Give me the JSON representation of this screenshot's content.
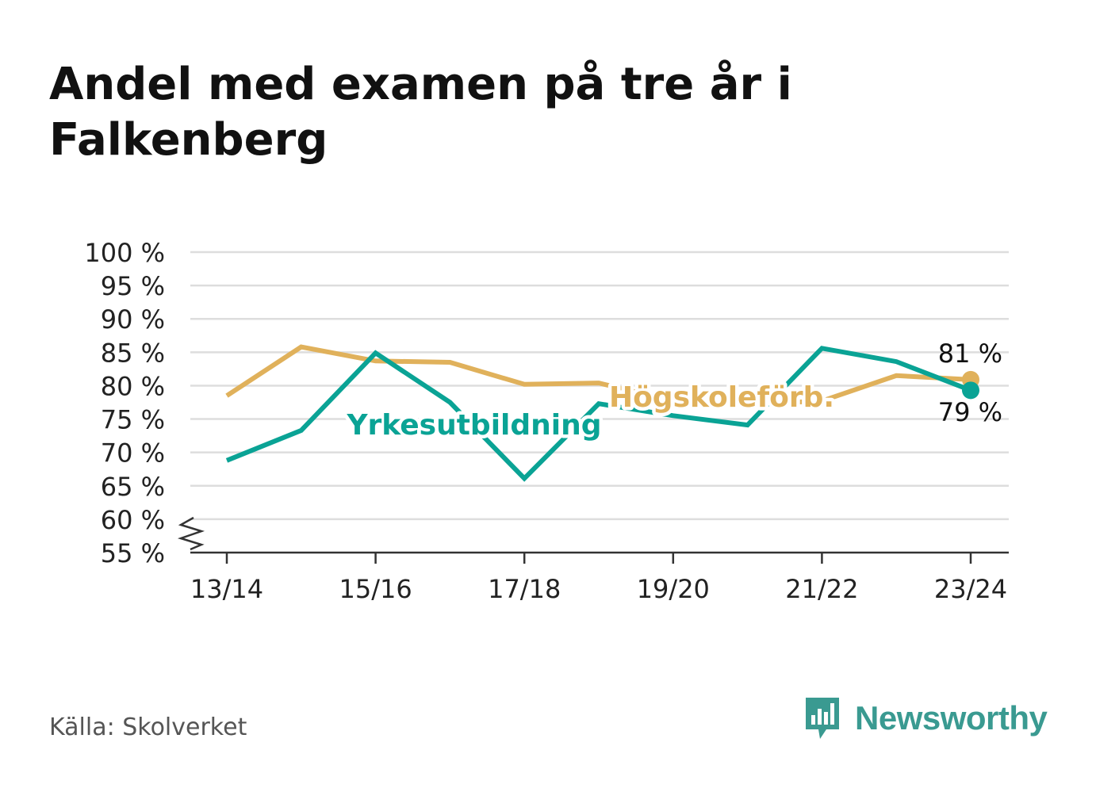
{
  "title": "Andel med examen på tre år i Falkenberg",
  "source": "Källa: Skolverket",
  "brand": {
    "name": "Newsworthy",
    "icon": "newsworthy-logo-icon"
  },
  "colors": {
    "yrke": "#0aa395",
    "hogskole": "#e0b15b",
    "grid": "#dddddd",
    "axis": "#333333",
    "text": "#222222"
  },
  "chart_data": {
    "type": "line",
    "title": "Andel med examen på tre år i Falkenberg",
    "xlabel": "",
    "ylabel": "",
    "ylim": [
      55,
      100
    ],
    "yticks": [
      100,
      95,
      90,
      85,
      80,
      75,
      70,
      65,
      60,
      55
    ],
    "ytick_labels": [
      "100 %",
      "95 %",
      "90 %",
      "85 %",
      "80 %",
      "75 %",
      "70 %",
      "65 %",
      "60 %",
      "55 %"
    ],
    "y_axis_break": true,
    "grid": true,
    "categories": [
      "13/14",
      "14/15",
      "15/16",
      "16/17",
      "17/18",
      "18/19",
      "19/20",
      "20/21",
      "21/22",
      "22/23",
      "23/24"
    ],
    "xtick_labels": [
      "13/14",
      "",
      "15/16",
      "",
      "17/18",
      "",
      "19/20",
      "",
      "21/22",
      "",
      "23/24"
    ],
    "series": [
      {
        "name": "Högskoleförb.",
        "color": "#e0b15b",
        "values": [
          78.5,
          85.8,
          83.7,
          83.5,
          80.2,
          80.4,
          77.7,
          77.2,
          77.7,
          81.5,
          80.9
        ],
        "end_label": "81 %"
      },
      {
        "name": "Yrkesutbildning",
        "color": "#0aa395",
        "values": [
          68.8,
          73.3,
          84.9,
          77.5,
          66.1,
          77.3,
          75.5,
          74.1,
          85.6,
          83.6,
          79.3
        ],
        "end_label": "79 %"
      }
    ]
  }
}
